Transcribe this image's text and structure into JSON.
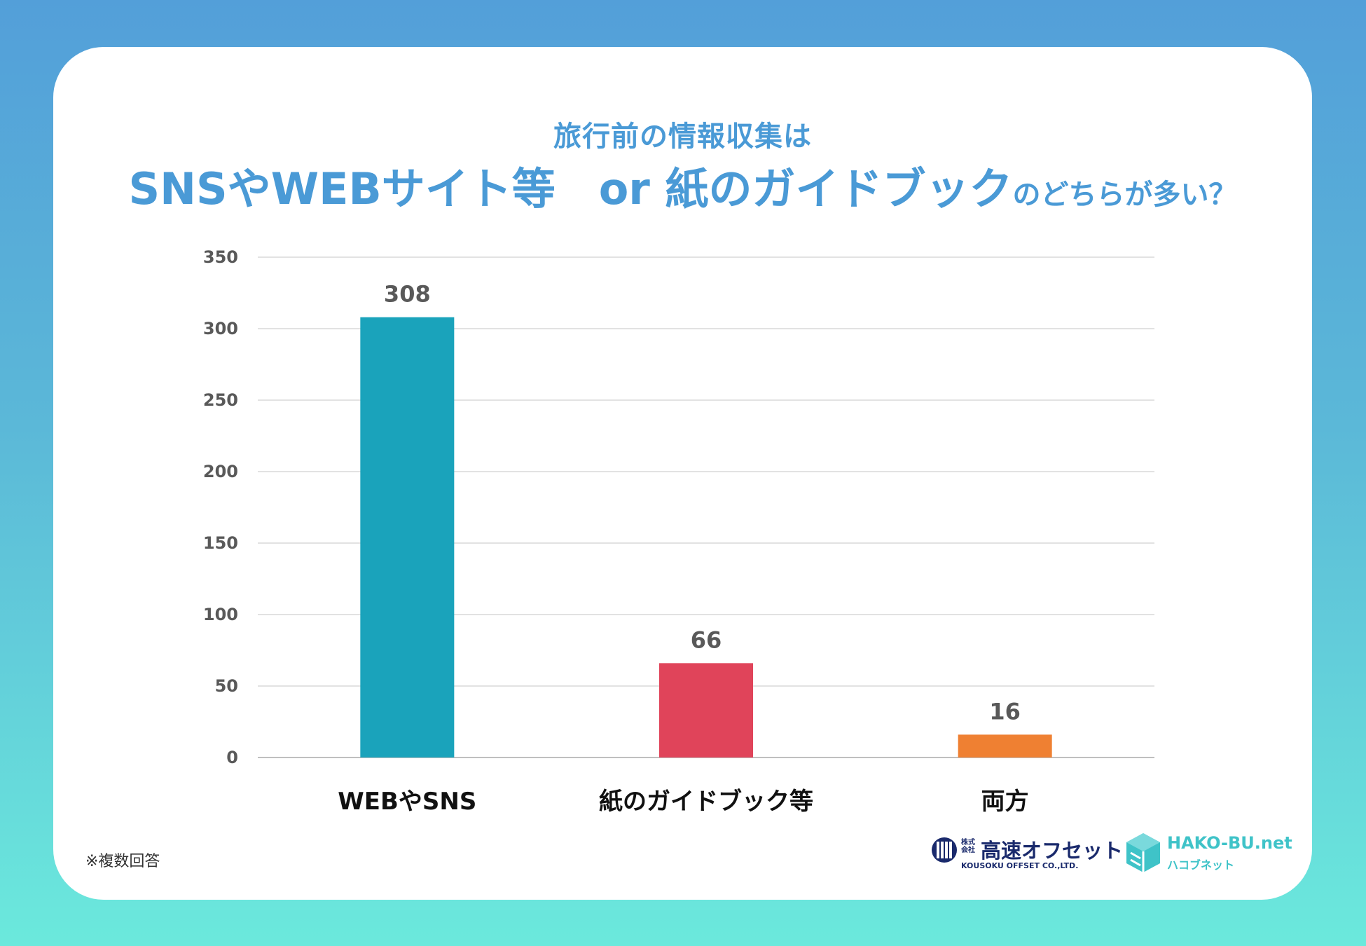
{
  "chart_data": {
    "type": "bar",
    "title_line1": "旅行前の情報収集は",
    "title_line2_main": "SNSやWEBサイト等　or 紙のガイドブック",
    "title_line2_suffix": "のどちらが多い？",
    "categories": [
      "WEBやSNS",
      "紙のガイドブック等",
      "両方"
    ],
    "values": [
      308,
      66,
      16
    ],
    "colors": [
      "#1aa3bb",
      "#e0445a",
      "#ef8032"
    ],
    "ylim": [
      0,
      350
    ],
    "yticks": [
      0,
      50,
      100,
      150,
      200,
      250,
      300,
      350
    ],
    "ytick_labels": [
      "0",
      "50",
      "100",
      "150",
      "200",
      "250",
      "300",
      "350"
    ],
    "xlabel": "",
    "ylabel": "",
    "grid": true,
    "data_labels": [
      "308",
      "66",
      "16"
    ]
  },
  "note": "※複数回答",
  "logos": {
    "kousoku": {
      "prefix": "株式\n会社",
      "name": "高速オフセット",
      "english": "KOUSOKU OFFSET CO.,LTD."
    },
    "hako": {
      "name": "HAKO-BU.net",
      "sub": "ハコブネット"
    }
  },
  "colors": {
    "title": "#4a9ad6",
    "axis_text": "#595959",
    "grid": "#d9d9d9",
    "category_text": "#111111"
  }
}
